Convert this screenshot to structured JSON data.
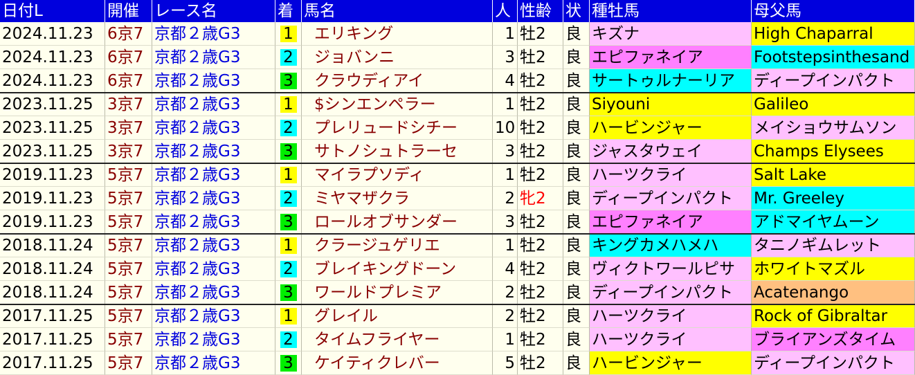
{
  "table": {
    "header": [
      "日付L",
      "開催",
      "レース名",
      "着",
      "馬名",
      "人",
      "性齢",
      "状",
      "種牡馬",
      "母父馬"
    ],
    "rows": [
      [
        "2024.11.23",
        "6京7",
        "京都２歳G3",
        "1",
        "エリキング",
        "1",
        "牡2",
        "良",
        "キズナ",
        "High Chaparral"
      ],
      [
        "2024.11.23",
        "6京7",
        "京都２歳G3",
        "2",
        "ジョバンニ",
        "3",
        "牡2",
        "良",
        "エピファネイア",
        "Footstepsinthesand"
      ],
      [
        "2024.11.23",
        "6京7",
        "京都２歳G3",
        "3",
        "クラウディアイ",
        "4",
        "牡2",
        "良",
        "サートゥルナーリア",
        "ディープインパクト"
      ],
      [
        "2023.11.25",
        "3京7",
        "京都２歳G3",
        "1",
        "$シンエンペラー",
        "1",
        "牡2",
        "良",
        "Siyouni",
        "Galileo"
      ],
      [
        "2023.11.25",
        "3京7",
        "京都２歳G3",
        "2",
        "プレリュードシチー",
        "10",
        "牡2",
        "良",
        "ハービンジャー",
        "メイショウサムソン"
      ],
      [
        "2023.11.25",
        "3京7",
        "京都２歳G3",
        "3",
        "サトノシュトラーセ",
        "3",
        "牡2",
        "良",
        "ジャスタウェイ",
        "Champs Elysees"
      ],
      [
        "2019.11.23",
        "5京7",
        "京都２歳G3",
        "1",
        "マイラプソディ",
        "1",
        "牡2",
        "良",
        "ハーツクライ",
        "Salt Lake"
      ],
      [
        "2019.11.23",
        "5京7",
        "京都２歳G3",
        "2",
        "ミヤマザクラ",
        "2",
        "牝2",
        "良",
        "ディープインパクト",
        "Mr. Greeley"
      ],
      [
        "2019.11.23",
        "5京7",
        "京都２歳G3",
        "3",
        "ロールオブサンダー",
        "3",
        "牡2",
        "良",
        "エピファネイア",
        "アドマイヤムーン"
      ],
      [
        "2018.11.24",
        "5京7",
        "京都２歳G3",
        "1",
        "クラージュゲリエ",
        "1",
        "牡2",
        "良",
        "キングカメハメハ",
        "タニノギムレット"
      ],
      [
        "2018.11.24",
        "5京7",
        "京都２歳G3",
        "2",
        "ブレイキングドーン",
        "4",
        "牡2",
        "良",
        "ヴィクトワールピサ",
        "ホワイトマズル"
      ],
      [
        "2018.11.24",
        "5京7",
        "京都２歳G3",
        "3",
        "ワールドプレミア",
        "2",
        "牡2",
        "良",
        "ディープインパクト",
        "Acatenango"
      ],
      [
        "2017.11.25",
        "5京7",
        "京都２歳G3",
        "1",
        "グレイル",
        "2",
        "牡2",
        "良",
        "ハーツクライ",
        "Rock of Gibraltar"
      ],
      [
        "2017.11.25",
        "5京7",
        "京都２歳G3",
        "2",
        "タイムフライヤー",
        "1",
        "牡2",
        "良",
        "ハーツクライ",
        "ブライアンズタイム"
      ],
      [
        "2017.11.25",
        "5京7",
        "京都２歳G3",
        "3",
        "ケイティクレバー",
        "5",
        "牡2",
        "良",
        "ハービンジャー",
        "ディープインパクト"
      ]
    ]
  }
}
